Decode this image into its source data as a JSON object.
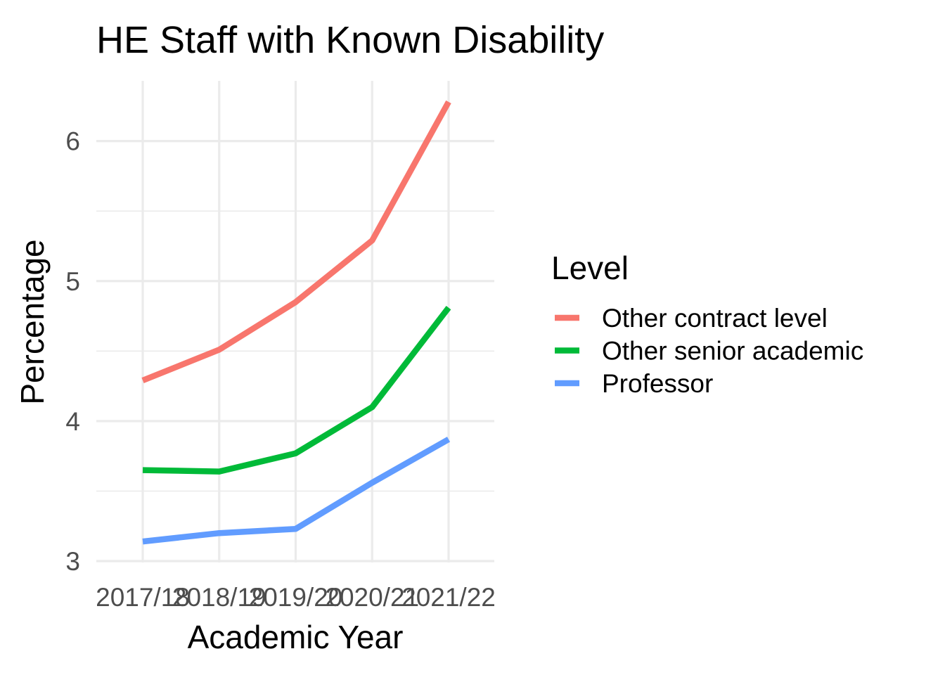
{
  "chart_data": {
    "type": "line",
    "title": "HE Staff with Known Disability",
    "xlabel": "Academic Year",
    "ylabel": "Percentage",
    "categories": [
      "2017/18",
      "2018/19",
      "2019/20",
      "2020/21",
      "2021/22"
    ],
    "ylim": [
      2.99,
      6.43
    ],
    "yticks": [
      3,
      4,
      5,
      6
    ],
    "grid": true,
    "legend": {
      "title": "Level",
      "placement": "right"
    },
    "series": [
      {
        "name": "Other contract level",
        "color": "#F8766D",
        "values": [
          4.29,
          4.51,
          4.85,
          5.29,
          6.28
        ]
      },
      {
        "name": "Other senior academic",
        "color": "#00BA38",
        "values": [
          3.65,
          3.64,
          3.77,
          4.1,
          4.81
        ]
      },
      {
        "name": "Professor",
        "color": "#619CFF",
        "values": [
          3.14,
          3.2,
          3.23,
          3.56,
          3.87
        ]
      }
    ]
  }
}
